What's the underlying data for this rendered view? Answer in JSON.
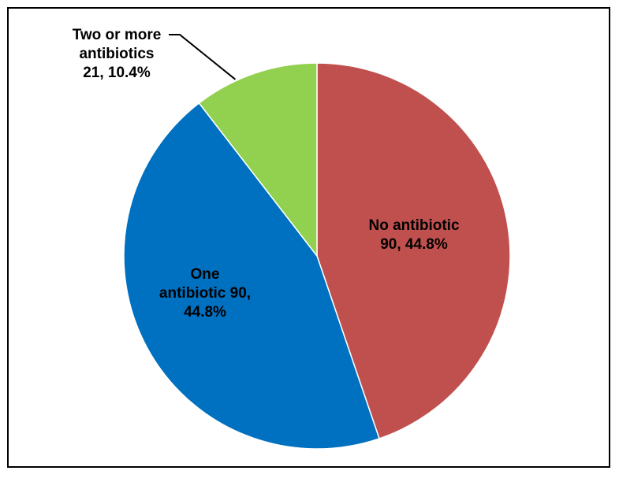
{
  "chart_data": {
    "type": "pie",
    "slices": [
      {
        "name": "No antibiotic",
        "value": 90,
        "percent": "44.8%",
        "color": "#c0504d",
        "label_lines": [
          "No antibiotic",
          "90, 44.8%"
        ]
      },
      {
        "name": "One antibiotic",
        "value": 90,
        "percent": "44.8%",
        "color": "#0070c0",
        "label_lines": [
          "One",
          "antibiotic 90,",
          "44.8%"
        ]
      },
      {
        "name": "Two or more antibiotics",
        "value": 21,
        "percent": "10.4%",
        "color": "#92d050",
        "label_lines": [
          "Two or more",
          "antibiotics",
          "21, 10.4%"
        ]
      }
    ],
    "start_angle_deg": 0,
    "direction": "clockwise",
    "legend": "none",
    "labels": "data labels with leader line for small slice"
  }
}
